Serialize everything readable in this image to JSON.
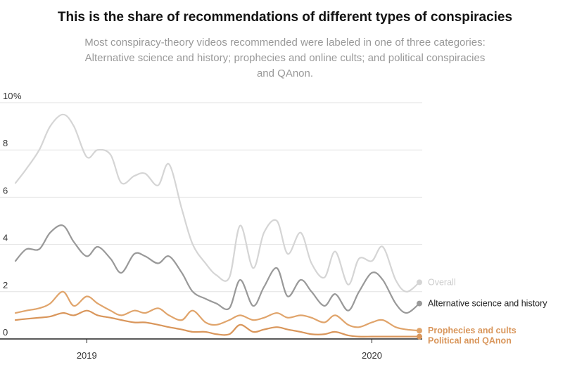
{
  "title": "This is the share of recommendations of different types of conspiracies",
  "subtitle": "Most conspiracy-theory videos recommended were labeled in one of three categories: Alternative science and history; prophecies and online cults; and political conspiracies and QAnon.",
  "chart_data": {
    "type": "line",
    "title": "This is the share of recommendations of different types of conspiracies",
    "xlabel": "",
    "ylabel": "",
    "y_unit": "%",
    "ylim": [
      0,
      10
    ],
    "yticks": [
      "0",
      "2",
      "4",
      "6",
      "8",
      "10"
    ],
    "xlim": [
      "2018-10",
      "2020-03"
    ],
    "xticks": [
      {
        "label": "2019",
        "date": "2019-01"
      },
      {
        "label": "2020",
        "date": "2020-01"
      }
    ],
    "grid": true,
    "legend": "direct labels at right end of lines",
    "series": [
      {
        "name": "Overall",
        "color": "#d5d5d5",
        "points": [
          [
            "2018-10",
            6.6
          ],
          [
            "2018-10-15",
            7.2
          ],
          [
            "2018-11",
            8.0
          ],
          [
            "2018-11-15",
            9.0
          ],
          [
            "2018-12",
            9.5
          ],
          [
            "2018-12-15",
            9.0
          ],
          [
            "2019-01",
            7.7
          ],
          [
            "2019-01-15",
            8.0
          ],
          [
            "2019-02",
            7.8
          ],
          [
            "2019-02-15",
            6.6
          ],
          [
            "2019-03",
            6.9
          ],
          [
            "2019-03-15",
            7.0
          ],
          [
            "2019-04",
            6.5
          ],
          [
            "2019-04-15",
            7.4
          ],
          [
            "2019-05",
            5.5
          ],
          [
            "2019-05-15",
            4.0
          ],
          [
            "2019-06",
            3.2
          ],
          [
            "2019-06-15",
            2.7
          ],
          [
            "2019-07",
            2.6
          ],
          [
            "2019-07-15",
            4.8
          ],
          [
            "2019-08",
            3.0
          ],
          [
            "2019-08-15",
            4.5
          ],
          [
            "2019-09",
            5.0
          ],
          [
            "2019-09-15",
            3.6
          ],
          [
            "2019-10",
            4.5
          ],
          [
            "2019-10-15",
            3.2
          ],
          [
            "2019-11",
            2.6
          ],
          [
            "2019-11-15",
            3.7
          ],
          [
            "2019-12",
            2.3
          ],
          [
            "2019-12-15",
            3.4
          ],
          [
            "2020-01",
            3.3
          ],
          [
            "2020-01-15",
            3.9
          ],
          [
            "2020-02",
            2.5
          ],
          [
            "2020-02-15",
            2.0
          ],
          [
            "2020-03",
            2.4
          ]
        ]
      },
      {
        "name": "Alternative science and history",
        "color": "#999999",
        "points": [
          [
            "2018-10",
            3.3
          ],
          [
            "2018-10-15",
            3.8
          ],
          [
            "2018-11",
            3.8
          ],
          [
            "2018-11-15",
            4.5
          ],
          [
            "2018-12",
            4.8
          ],
          [
            "2018-12-15",
            4.1
          ],
          [
            "2019-01",
            3.5
          ],
          [
            "2019-01-15",
            3.9
          ],
          [
            "2019-02",
            3.4
          ],
          [
            "2019-02-15",
            2.8
          ],
          [
            "2019-03",
            3.6
          ],
          [
            "2019-03-15",
            3.5
          ],
          [
            "2019-04",
            3.2
          ],
          [
            "2019-04-15",
            3.5
          ],
          [
            "2019-05",
            2.8
          ],
          [
            "2019-05-15",
            2.0
          ],
          [
            "2019-06",
            1.7
          ],
          [
            "2019-06-15",
            1.5
          ],
          [
            "2019-07",
            1.3
          ],
          [
            "2019-07-15",
            2.5
          ],
          [
            "2019-08",
            1.4
          ],
          [
            "2019-08-15",
            2.2
          ],
          [
            "2019-09",
            3.0
          ],
          [
            "2019-09-15",
            1.8
          ],
          [
            "2019-10",
            2.5
          ],
          [
            "2019-10-15",
            2.0
          ],
          [
            "2019-11",
            1.4
          ],
          [
            "2019-11-15",
            1.9
          ],
          [
            "2019-12",
            1.2
          ],
          [
            "2019-12-15",
            2.0
          ],
          [
            "2020-01",
            2.8
          ],
          [
            "2020-01-15",
            2.5
          ],
          [
            "2020-02",
            1.5
          ],
          [
            "2020-02-15",
            1.1
          ],
          [
            "2020-03",
            1.5
          ]
        ]
      },
      {
        "name": "Prophecies and cults",
        "color": "#e0a46b",
        "points": [
          [
            "2018-10",
            1.1
          ],
          [
            "2018-10-15",
            1.2
          ],
          [
            "2018-11",
            1.3
          ],
          [
            "2018-11-15",
            1.5
          ],
          [
            "2018-12",
            2.0
          ],
          [
            "2018-12-15",
            1.4
          ],
          [
            "2019-01",
            1.8
          ],
          [
            "2019-01-15",
            1.5
          ],
          [
            "2019-02",
            1.2
          ],
          [
            "2019-02-15",
            1.0
          ],
          [
            "2019-03",
            1.2
          ],
          [
            "2019-03-15",
            1.1
          ],
          [
            "2019-04",
            1.3
          ],
          [
            "2019-04-15",
            1.0
          ],
          [
            "2019-05",
            0.8
          ],
          [
            "2019-05-15",
            1.2
          ],
          [
            "2019-06",
            0.7
          ],
          [
            "2019-06-15",
            0.6
          ],
          [
            "2019-07",
            0.8
          ],
          [
            "2019-07-15",
            1.0
          ],
          [
            "2019-08",
            0.8
          ],
          [
            "2019-08-15",
            0.9
          ],
          [
            "2019-09",
            1.1
          ],
          [
            "2019-09-15",
            0.9
          ],
          [
            "2019-10",
            1.0
          ],
          [
            "2019-10-15",
            0.9
          ],
          [
            "2019-11",
            0.7
          ],
          [
            "2019-11-15",
            1.0
          ],
          [
            "2019-12",
            0.6
          ],
          [
            "2019-12-15",
            0.5
          ],
          [
            "2020-01",
            0.7
          ],
          [
            "2020-01-15",
            0.8
          ],
          [
            "2020-02",
            0.5
          ],
          [
            "2020-02-15",
            0.4
          ],
          [
            "2020-03",
            0.35
          ]
        ]
      },
      {
        "name": "Political and QAnon",
        "color": "#d9965b",
        "points": [
          [
            "2018-10",
            0.8
          ],
          [
            "2018-10-15",
            0.85
          ],
          [
            "2018-11",
            0.9
          ],
          [
            "2018-11-15",
            0.95
          ],
          [
            "2018-12",
            1.1
          ],
          [
            "2018-12-15",
            1.0
          ],
          [
            "2019-01",
            1.2
          ],
          [
            "2019-01-15",
            1.0
          ],
          [
            "2019-02",
            0.9
          ],
          [
            "2019-02-15",
            0.8
          ],
          [
            "2019-03",
            0.7
          ],
          [
            "2019-03-15",
            0.7
          ],
          [
            "2019-04",
            0.6
          ],
          [
            "2019-04-15",
            0.5
          ],
          [
            "2019-05",
            0.4
          ],
          [
            "2019-05-15",
            0.3
          ],
          [
            "2019-06",
            0.3
          ],
          [
            "2019-06-15",
            0.2
          ],
          [
            "2019-07",
            0.2
          ],
          [
            "2019-07-15",
            0.6
          ],
          [
            "2019-08",
            0.3
          ],
          [
            "2019-08-15",
            0.4
          ],
          [
            "2019-09",
            0.5
          ],
          [
            "2019-09-15",
            0.4
          ],
          [
            "2019-10",
            0.3
          ],
          [
            "2019-10-15",
            0.2
          ],
          [
            "2019-11",
            0.2
          ],
          [
            "2019-11-15",
            0.3
          ],
          [
            "2019-12",
            0.15
          ],
          [
            "2019-12-15",
            0.1
          ],
          [
            "2020-01",
            0.1
          ],
          [
            "2020-01-15",
            0.1
          ],
          [
            "2020-02",
            0.1
          ],
          [
            "2020-02-15",
            0.1
          ],
          [
            "2020-03",
            0.1
          ]
        ]
      }
    ]
  }
}
